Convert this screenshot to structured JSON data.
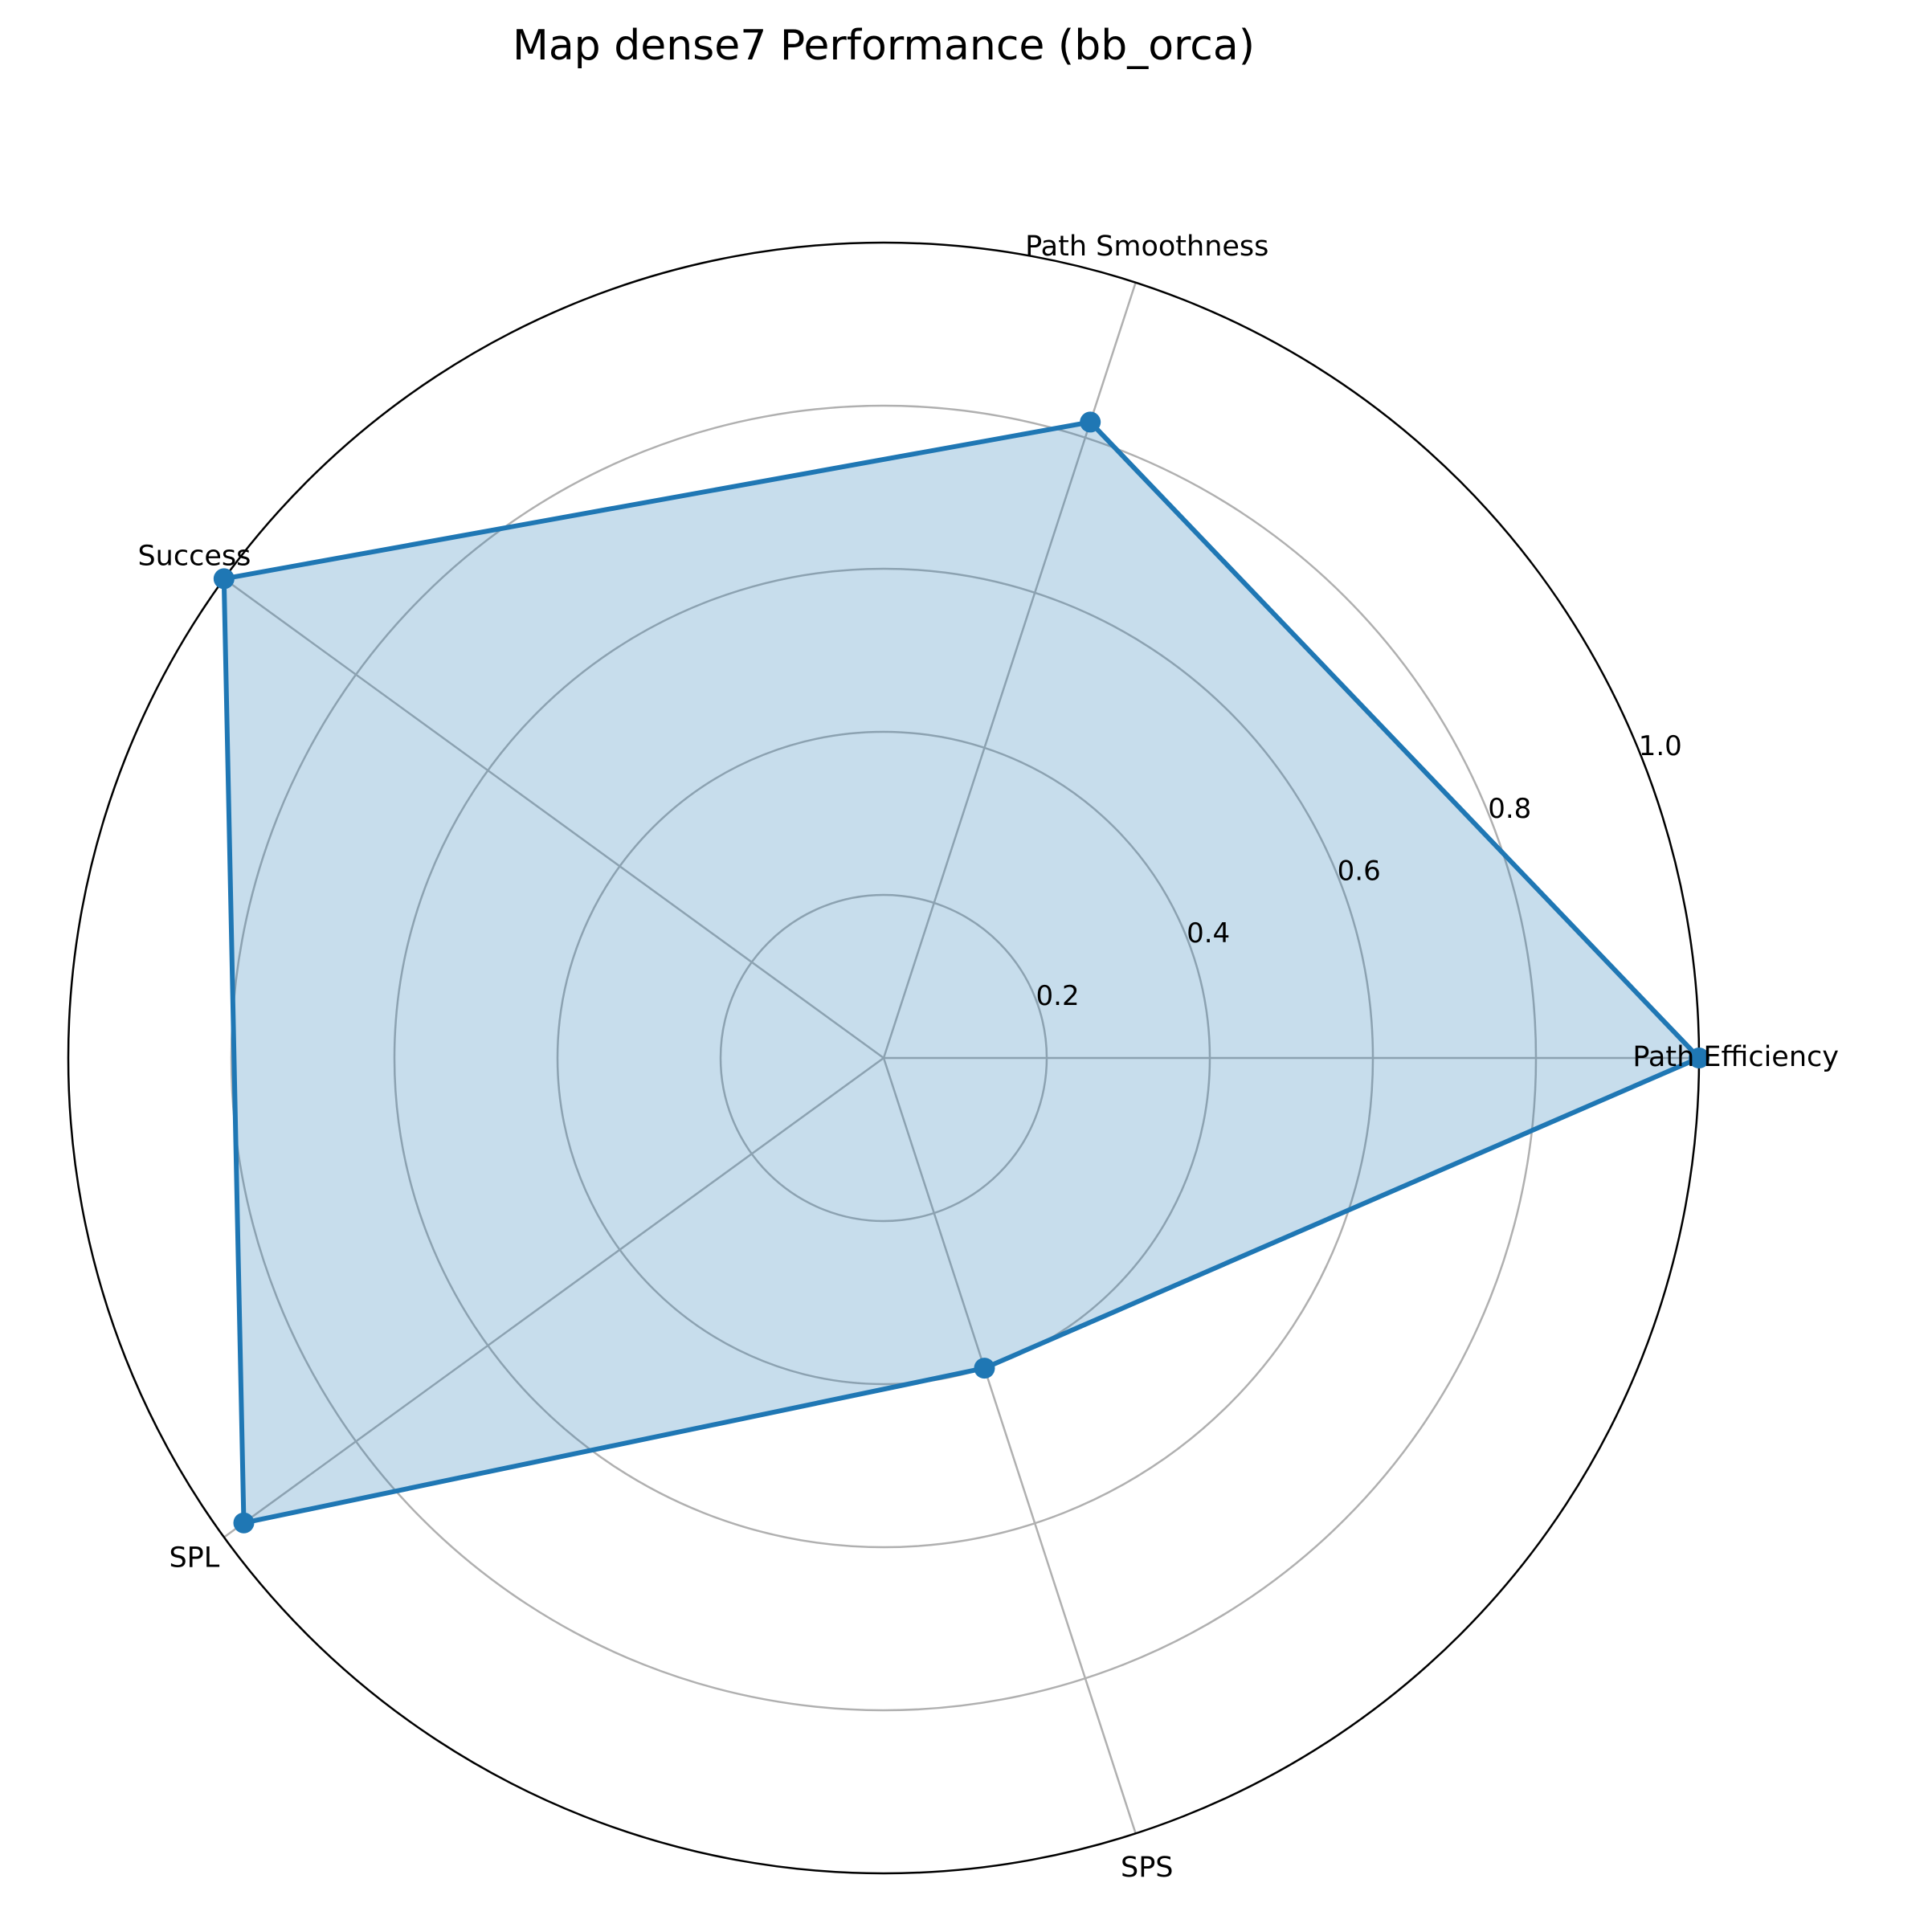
{
  "chart_data": {
    "type": "radar",
    "title": "Map dense7 Performance (bb_orca)",
    "axes": [
      "Path Efficiency",
      "Path Smoothness",
      "Success",
      "SPL",
      "SPS"
    ],
    "series": [
      {
        "values": [
          1.0,
          0.82,
          1.0,
          0.97,
          0.4
        ],
        "color": "#1f77b4",
        "fill_opacity": 0.25
      }
    ],
    "rlim": [
      0,
      1.0
    ],
    "rticks": [
      0.2,
      0.4,
      0.6,
      0.8,
      1.0
    ],
    "rtick_labels": [
      "0.2",
      "0.4",
      "0.6",
      "0.8",
      "1.0"
    ],
    "grid": true,
    "grid_color": "#b0b0b0",
    "legend": false
  }
}
